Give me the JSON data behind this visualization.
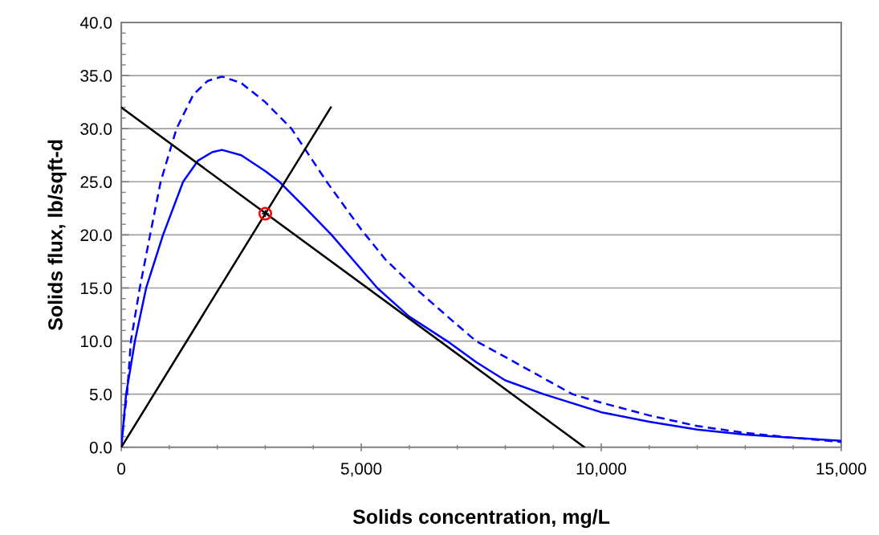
{
  "chart_data": {
    "type": "line",
    "xlabel": "Solids concentration, mg/L",
    "ylabel": "Solids flux, lb/sqft-d",
    "xlim": [
      0,
      15000
    ],
    "xticks": [
      0,
      {
        "value": 5000,
        "label": "5,000"
      },
      {
        "value": 10000,
        "label": "10,000"
      },
      {
        "value": 15000,
        "label": "15,000"
      }
    ],
    "ylim": [
      0,
      40
    ],
    "yticks": [
      {
        "value": 0,
        "label": "0.0"
      },
      {
        "value": 5,
        "label": "5.0"
      },
      {
        "value": 10,
        "label": "10.0"
      },
      {
        "value": 15,
        "label": "15.0"
      },
      {
        "value": 20,
        "label": "20.0"
      },
      {
        "value": 25,
        "label": "25.0"
      },
      {
        "value": 30,
        "label": "30.0"
      },
      {
        "value": 35,
        "label": "35.0"
      },
      {
        "value": 40,
        "label": "40.0"
      }
    ],
    "grid": "y",
    "legend": false,
    "series": [
      {
        "line_style": "dashed",
        "color": "#0000ff",
        "x": [
          0,
          50,
          120,
          200,
          385,
          600,
          820,
          1150,
          1500,
          1800,
          2100,
          2500,
          3000,
          3545,
          4280,
          5000,
          5500,
          6120,
          6800,
          7390,
          8000,
          8600,
          9400,
          10000,
          11000,
          12000,
          13000,
          14000,
          15000
        ],
        "values": [
          0,
          2.5,
          5,
          10,
          15,
          20,
          25,
          30,
          33.2,
          34.5,
          34.9,
          34.3,
          32.5,
          30,
          25,
          20.5,
          17.7,
          15,
          12.3,
          10,
          8.5,
          7,
          5,
          4.2,
          3,
          2,
          1.35,
          0.9,
          0.5
        ]
      },
      {
        "line_style": "solid",
        "color": "#0000ff",
        "x": [
          0,
          100,
          284,
          518,
          870,
          1288,
          1600,
          1900,
          2100,
          2500,
          3000,
          3294,
          3800,
          4381,
          5334,
          6000,
          6789,
          7400,
          8000,
          8796,
          10000,
          11000,
          12000,
          13000,
          14000,
          15000
        ],
        "values": [
          0,
          5,
          10,
          15,
          20,
          25,
          27,
          27.8,
          28,
          27.5,
          26,
          25,
          22.7,
          20,
          15,
          12.3,
          10,
          8,
          6.3,
          5,
          3.3,
          2.4,
          1.66,
          1.2,
          0.9,
          0.6
        ]
      },
      {
        "line_style": "solid",
        "color": "#000000",
        "x": [
          0,
          9650
        ],
        "values": [
          32,
          0
        ]
      },
      {
        "line_style": "solid",
        "color": "#000000",
        "x": [
          0,
          4365
        ],
        "values": [
          0,
          32
        ]
      },
      {
        "type": "scatter",
        "marker": "circle",
        "color": "#ff0000",
        "x": [
          3000
        ],
        "values": [
          22
        ]
      }
    ]
  }
}
